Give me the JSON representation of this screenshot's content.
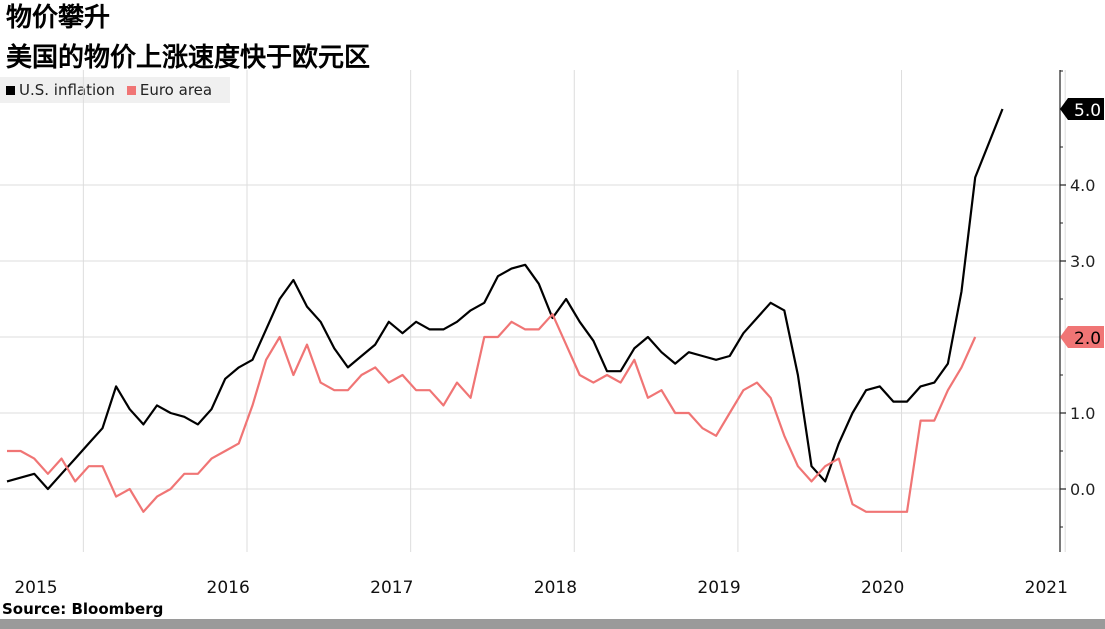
{
  "title": "物价攀升",
  "subtitle": "美国的物价上涨速度快于欧元区",
  "source": "Source: Bloomberg",
  "colors": {
    "us": "#000000",
    "euro": "#f07575",
    "grid": "#dddddd",
    "axis": "#222222"
  },
  "chart_data": {
    "type": "line",
    "x_tick_labels": [
      "2015",
      "2016",
      "2017",
      "2018",
      "2019",
      "2020",
      "2021"
    ],
    "y_tick_labels": [
      "0.0",
      "1.0",
      "2.0",
      "3.0",
      "4.0"
    ],
    "ylim": [
      -0.8,
      5.5
    ],
    "xlim": [
      "2015-01",
      "2021-06"
    ],
    "grid": true,
    "legend_position": "top-left",
    "series": [
      {
        "name": "U.S. inflation",
        "color": "#000000",
        "end_label": "5.0",
        "points": [
          [
            "2015-01",
            0.1
          ],
          [
            "2015-03",
            0.2
          ],
          [
            "2015-04",
            0.0
          ],
          [
            "2015-05",
            0.2
          ],
          [
            "2015-06",
            0.4
          ],
          [
            "2015-07",
            0.6
          ],
          [
            "2015-08",
            0.8
          ],
          [
            "2015-09",
            1.35
          ],
          [
            "2015-10",
            1.05
          ],
          [
            "2015-11",
            0.85
          ],
          [
            "2015-12",
            1.1
          ],
          [
            "2016-01",
            1.0
          ],
          [
            "2016-02",
            0.95
          ],
          [
            "2016-03",
            0.85
          ],
          [
            "2016-04",
            1.05
          ],
          [
            "2016-05",
            1.45
          ],
          [
            "2016-06",
            1.6
          ],
          [
            "2016-07",
            1.7
          ],
          [
            "2016-08",
            2.1
          ],
          [
            "2016-09",
            2.5
          ],
          [
            "2016-10",
            2.75
          ],
          [
            "2016-11",
            2.4
          ],
          [
            "2016-12",
            2.2
          ],
          [
            "2017-01",
            1.85
          ],
          [
            "2017-02",
            1.6
          ],
          [
            "2017-03",
            1.75
          ],
          [
            "2017-04",
            1.9
          ],
          [
            "2017-05",
            2.2
          ],
          [
            "2017-06",
            2.05
          ],
          [
            "2017-07",
            2.2
          ],
          [
            "2017-08",
            2.1
          ],
          [
            "2017-09",
            2.1
          ],
          [
            "2017-10",
            2.2
          ],
          [
            "2017-11",
            2.35
          ],
          [
            "2017-12",
            2.45
          ],
          [
            "2018-01",
            2.8
          ],
          [
            "2018-02",
            2.9
          ],
          [
            "2018-03",
            2.95
          ],
          [
            "2018-04",
            2.7
          ],
          [
            "2018-05",
            2.25
          ],
          [
            "2018-06",
            2.5
          ],
          [
            "2018-07",
            2.2
          ],
          [
            "2018-08",
            1.95
          ],
          [
            "2018-09",
            1.55
          ],
          [
            "2018-10",
            1.55
          ],
          [
            "2018-11",
            1.85
          ],
          [
            "2018-12",
            2.0
          ],
          [
            "2019-01",
            1.8
          ],
          [
            "2019-02",
            1.65
          ],
          [
            "2019-03",
            1.8
          ],
          [
            "2019-04",
            1.75
          ],
          [
            "2019-05",
            1.7
          ],
          [
            "2019-06",
            1.75
          ],
          [
            "2019-07",
            2.05
          ],
          [
            "2019-08",
            2.25
          ],
          [
            "2019-09",
            2.45
          ],
          [
            "2019-10",
            2.35
          ],
          [
            "2019-11",
            1.5
          ],
          [
            "2019-12",
            0.3
          ],
          [
            "2020-01",
            0.1
          ],
          [
            "2020-02",
            0.6
          ],
          [
            "2020-03",
            1.0
          ],
          [
            "2020-04",
            1.3
          ],
          [
            "2020-05",
            1.35
          ],
          [
            "2020-06",
            1.15
          ],
          [
            "2020-07",
            1.15
          ],
          [
            "2020-08",
            1.35
          ],
          [
            "2020-09",
            1.4
          ],
          [
            "2020-10",
            1.65
          ],
          [
            "2020-11",
            2.6
          ],
          [
            "2020-12",
            4.1
          ],
          [
            "2021-02",
            5.0
          ]
        ]
      },
      {
        "name": "Euro area",
        "color": "#f07575",
        "end_label": "2.0",
        "points": [
          [
            "2015-01",
            0.5
          ],
          [
            "2015-02",
            0.5
          ],
          [
            "2015-03",
            0.4
          ],
          [
            "2015-04",
            0.2
          ],
          [
            "2015-05",
            0.4
          ],
          [
            "2015-06",
            0.1
          ],
          [
            "2015-07",
            0.3
          ],
          [
            "2015-08",
            0.3
          ],
          [
            "2015-09",
            -0.1
          ],
          [
            "2015-10",
            0.0
          ],
          [
            "2015-11",
            -0.3
          ],
          [
            "2015-12",
            -0.1
          ],
          [
            "2016-01",
            0.0
          ],
          [
            "2016-02",
            0.2
          ],
          [
            "2016-03",
            0.2
          ],
          [
            "2016-04",
            0.4
          ],
          [
            "2016-05",
            0.5
          ],
          [
            "2016-06",
            0.6
          ],
          [
            "2016-07",
            1.1
          ],
          [
            "2016-08",
            1.7
          ],
          [
            "2016-09",
            2.0
          ],
          [
            "2016-10",
            1.5
          ],
          [
            "2016-11",
            1.9
          ],
          [
            "2016-12",
            1.4
          ],
          [
            "2017-01",
            1.3
          ],
          [
            "2017-02",
            1.3
          ],
          [
            "2017-03",
            1.5
          ],
          [
            "2017-04",
            1.6
          ],
          [
            "2017-05",
            1.4
          ],
          [
            "2017-06",
            1.5
          ],
          [
            "2017-07",
            1.3
          ],
          [
            "2017-08",
            1.3
          ],
          [
            "2017-09",
            1.1
          ],
          [
            "2017-10",
            1.4
          ],
          [
            "2017-11",
            1.2
          ],
          [
            "2017-12",
            2.0
          ],
          [
            "2018-01",
            2.0
          ],
          [
            "2018-02",
            2.2
          ],
          [
            "2018-03",
            2.1
          ],
          [
            "2018-04",
            2.1
          ],
          [
            "2018-05",
            2.3
          ],
          [
            "2018-06",
            1.9
          ],
          [
            "2018-07",
            1.5
          ],
          [
            "2018-08",
            1.4
          ],
          [
            "2018-09",
            1.5
          ],
          [
            "2018-10",
            1.4
          ],
          [
            "2018-11",
            1.7
          ],
          [
            "2018-12",
            1.2
          ],
          [
            "2019-01",
            1.3
          ],
          [
            "2019-02",
            1.0
          ],
          [
            "2019-03",
            1.0
          ],
          [
            "2019-04",
            0.8
          ],
          [
            "2019-05",
            0.7
          ],
          [
            "2019-06",
            1.0
          ],
          [
            "2019-07",
            1.3
          ],
          [
            "2019-08",
            1.4
          ],
          [
            "2019-09",
            1.2
          ],
          [
            "2019-10",
            0.7
          ],
          [
            "2019-11",
            0.3
          ],
          [
            "2019-12",
            0.1
          ],
          [
            "2020-01",
            0.3
          ],
          [
            "2020-02",
            0.4
          ],
          [
            "2020-03",
            -0.2
          ],
          [
            "2020-04",
            -0.3
          ],
          [
            "2020-05",
            -0.3
          ],
          [
            "2020-06",
            -0.3
          ],
          [
            "2020-07",
            -0.3
          ],
          [
            "2020-08",
            0.9
          ],
          [
            "2020-09",
            0.9
          ],
          [
            "2020-10",
            1.3
          ],
          [
            "2020-11",
            1.6
          ],
          [
            "2020-12",
            2.0
          ]
        ]
      }
    ]
  }
}
